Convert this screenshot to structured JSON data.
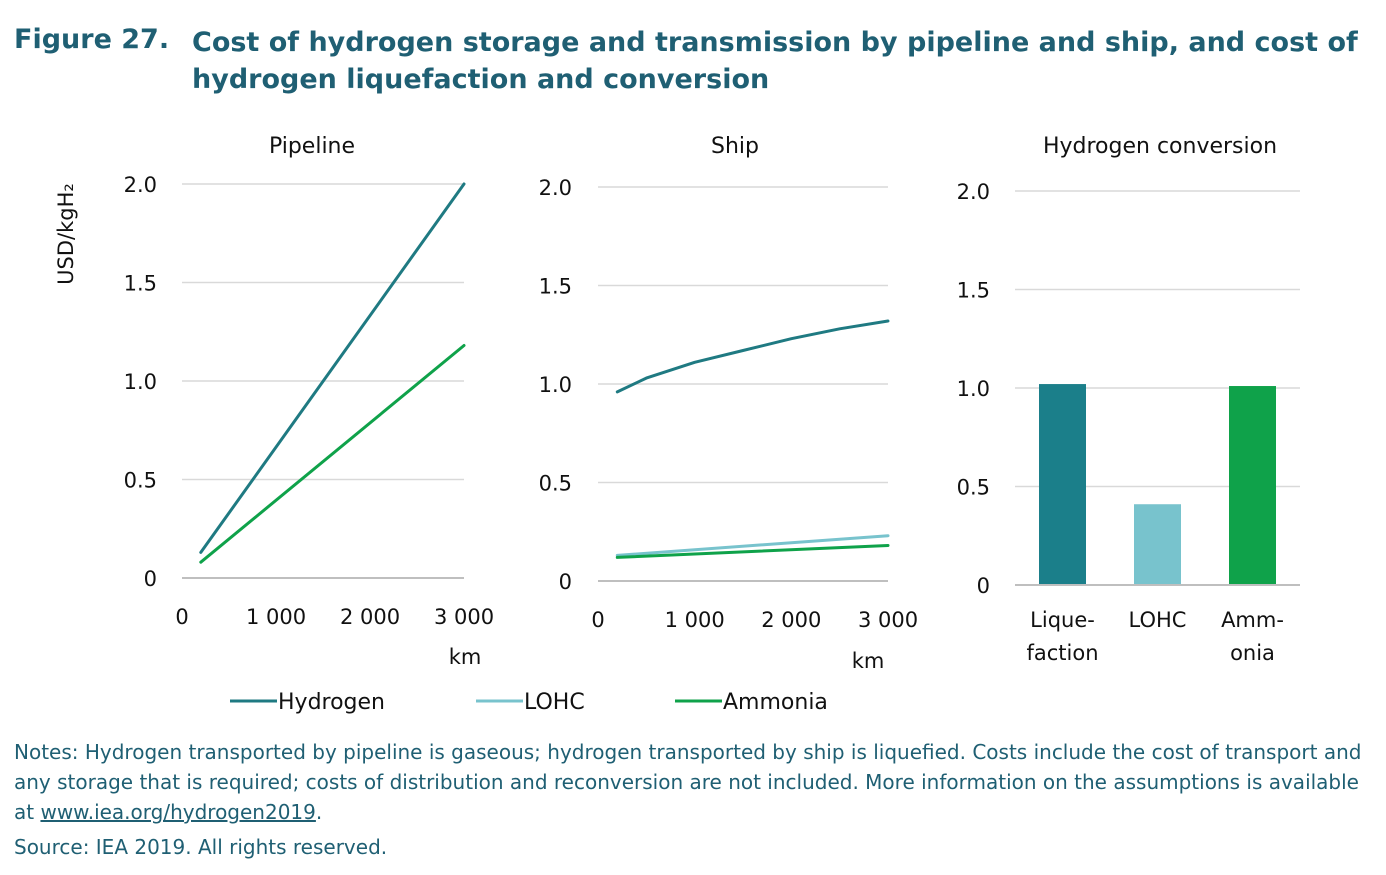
{
  "figure": {
    "label": "Figure 27.",
    "title": "Cost of hydrogen storage and transmission by pipeline and ship, and cost of hydrogen liquefaction and conversion"
  },
  "colors": {
    "hydrogen": "#1f7a82",
    "lohc": "#78c3cd",
    "ammonia": "#0fa24a",
    "grid": "#d9d9d9",
    "axis": "#bfbfbf"
  },
  "legend": [
    {
      "name": "Hydrogen",
      "color": "#1f7a82"
    },
    {
      "name": "LOHC",
      "color": "#78c3cd"
    },
    {
      "name": "Ammonia",
      "color": "#0fa24a"
    }
  ],
  "chart_data": [
    {
      "type": "line",
      "title": "Pipeline",
      "ylabel": "USD/kgH₂",
      "xlabel": "km",
      "xlim": [
        0,
        3000
      ],
      "ylim": [
        0,
        2.0
      ],
      "xticks": [
        "0",
        "1 000",
        "2 000",
        "3 000"
      ],
      "yticks": [
        "0",
        "0.5",
        "1.0",
        "1.5",
        "2.0"
      ],
      "grid": true,
      "series": [
        {
          "name": "Hydrogen",
          "color": "#1f7a82",
          "x": [
            200,
            3000
          ],
          "y": [
            0.13,
            2.0
          ]
        },
        {
          "name": "Ammonia",
          "color": "#0fa24a",
          "x": [
            200,
            3000
          ],
          "y": [
            0.08,
            1.18
          ]
        }
      ]
    },
    {
      "type": "line",
      "title": "Ship",
      "xlabel": "km",
      "xlim": [
        0,
        3000
      ],
      "ylim": [
        0,
        2.0
      ],
      "xticks": [
        "0",
        "1 000",
        "2 000",
        "3 000"
      ],
      "yticks": [
        "0",
        "0.5",
        "1.0",
        "1.5",
        "2.0"
      ],
      "grid": true,
      "series": [
        {
          "name": "Hydrogen",
          "color": "#1f7a82",
          "x": [
            200,
            500,
            1000,
            1500,
            2000,
            2500,
            3000
          ],
          "y": [
            0.96,
            1.03,
            1.11,
            1.17,
            1.23,
            1.28,
            1.32
          ]
        },
        {
          "name": "LOHC",
          "color": "#78c3cd",
          "x": [
            200,
            3000
          ],
          "y": [
            0.13,
            0.23
          ]
        },
        {
          "name": "Ammonia",
          "color": "#0fa24a",
          "x": [
            200,
            3000
          ],
          "y": [
            0.12,
            0.18
          ]
        }
      ]
    },
    {
      "type": "bar",
      "title": "Hydrogen conversion",
      "ylim": [
        0,
        2.0
      ],
      "yticks": [
        "0",
        "0.5",
        "1.0",
        "1.5",
        "2.0"
      ],
      "grid": true,
      "categories": [
        [
          "Lique-",
          "faction"
        ],
        [
          "LOHC"
        ],
        [
          "Amm-",
          "onia"
        ]
      ],
      "values": [
        1.02,
        0.41,
        1.01
      ],
      "colors": [
        "#1b7f8a",
        "#78c3cd",
        "#0fa24a"
      ]
    }
  ],
  "notes": {
    "line1": "Notes: Hydrogen transported by pipeline is gaseous; hydrogen transported by ship is liquefied. Costs include the cost of transport and any storage that is required; costs of distribution and reconversion are not included. More information on the assumptions is available at ",
    "link": "www.iea.org/hydrogen2019",
    "end": "."
  },
  "source": "Source: IEA 2019. All rights reserved."
}
